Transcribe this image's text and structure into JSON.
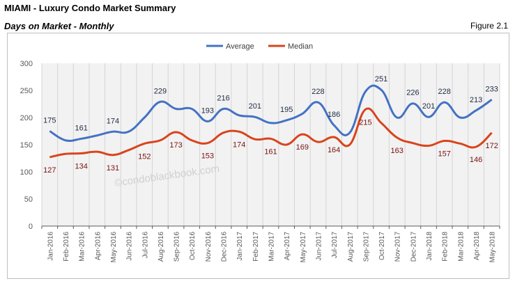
{
  "header": {
    "title": "MIAMI - Luxury Condo Market Summary",
    "subtitle": "Days on Market - Monthly",
    "figure": "Figure 2.1"
  },
  "watermark": "©condoblackbook.com",
  "chart_data": {
    "type": "line",
    "title": "",
    "xlabel": "",
    "ylabel": "",
    "ylim": [
      0,
      300
    ],
    "yticks": [
      0,
      50,
      100,
      150,
      200,
      250,
      300
    ],
    "grid": "vertical",
    "legend": "top-center",
    "categories": [
      "Jan-2016",
      "Feb-2016",
      "Mar-2016",
      "Apr-2016",
      "May-2016",
      "Jun-2016",
      "Jul-2016",
      "Aug-2016",
      "Sep-2016",
      "Oct-2016",
      "Nov-2016",
      "Dec-2016",
      "Jan-2017",
      "Feb-2017",
      "Mar-2017",
      "Apr-2017",
      "May-2017",
      "Jun-2017",
      "Jul-2017",
      "Aug-2017",
      "Sep-2017",
      "Oct-2017",
      "Nov-2017",
      "Dec-2017",
      "Jan-2018",
      "Feb-2018",
      "Mar-2018",
      "Apr-2018",
      "May-2018"
    ],
    "series": [
      {
        "name": "Average",
        "color": "#4472c4",
        "label_color": "#1f2a44",
        "values": [
          175,
          158,
          161,
          167,
          174,
          174,
          200,
          229,
          216,
          216,
          193,
          216,
          204,
          201,
          190,
          195,
          207,
          228,
          186,
          172,
          248,
          251,
          200,
          226,
          201,
          228,
          200,
          213,
          233
        ],
        "labels": [
          "175",
          null,
          "161",
          null,
          "174",
          null,
          null,
          "229",
          null,
          null,
          "193",
          "216",
          null,
          "201",
          null,
          "195",
          null,
          "228",
          "186",
          null,
          null,
          "251",
          null,
          "226",
          "201",
          "228",
          null,
          "213",
          "233"
        ]
      },
      {
        "name": "Median",
        "color": "#d9441c",
        "label_color": "#7b1010",
        "values": [
          127,
          133,
          134,
          137,
          131,
          140,
          152,
          158,
          173,
          158,
          153,
          172,
          174,
          160,
          161,
          150,
          169,
          155,
          164,
          150,
          215,
          190,
          163,
          153,
          148,
          157,
          152,
          146,
          172
        ],
        "labels": [
          "127",
          null,
          "134",
          null,
          "131",
          null,
          "152",
          null,
          "173",
          null,
          "153",
          null,
          "174",
          null,
          "161",
          null,
          "169",
          null,
          "164",
          null,
          "215",
          null,
          "163",
          null,
          null,
          "157",
          null,
          "146",
          "172"
        ]
      }
    ]
  }
}
